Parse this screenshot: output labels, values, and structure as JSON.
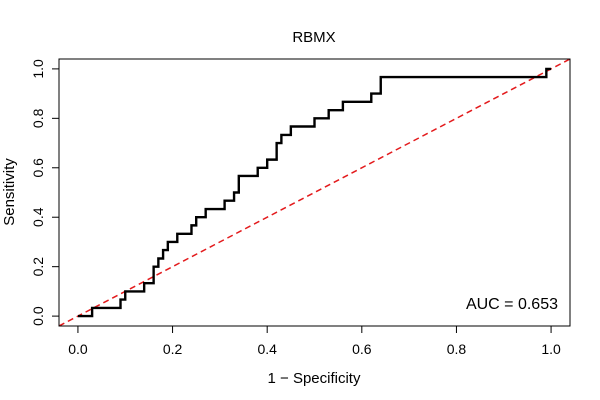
{
  "chart_data": {
    "type": "line",
    "title": "RBMX",
    "xlabel": "1 − Specificity",
    "ylabel": "Sensitivity",
    "xlim": [
      -0.04,
      1.04
    ],
    "ylim": [
      -0.04,
      1.04
    ],
    "x_ticks": [
      0.0,
      0.2,
      0.4,
      0.6,
      0.8,
      1.0
    ],
    "x_tick_labels": [
      "0.0",
      "0.2",
      "0.4",
      "0.6",
      "0.8",
      "1.0"
    ],
    "y_ticks": [
      0.0,
      0.2,
      0.4,
      0.6,
      0.8,
      1.0
    ],
    "y_tick_labels": [
      "0.0",
      "0.2",
      "0.4",
      "0.6",
      "0.8",
      "1.0"
    ],
    "grid": false,
    "annotation": "AUC = 0.653",
    "series": [
      {
        "color": "#000000",
        "style": "solid-step",
        "x": [
          0.0,
          0.03,
          0.03,
          0.09,
          0.09,
          0.1,
          0.1,
          0.14,
          0.14,
          0.16,
          0.16,
          0.17,
          0.17,
          0.18,
          0.18,
          0.19,
          0.19,
          0.21,
          0.21,
          0.24,
          0.24,
          0.25,
          0.25,
          0.27,
          0.27,
          0.31,
          0.31,
          0.33,
          0.33,
          0.34,
          0.34,
          0.38,
          0.38,
          0.4,
          0.4,
          0.42,
          0.42,
          0.43,
          0.43,
          0.45,
          0.45,
          0.5,
          0.5,
          0.53,
          0.53,
          0.56,
          0.56,
          0.62,
          0.62,
          0.64,
          0.64,
          0.99,
          0.99,
          1.0
        ],
        "y": [
          0.0,
          0.0,
          0.033,
          0.033,
          0.067,
          0.067,
          0.1,
          0.1,
          0.133,
          0.133,
          0.2,
          0.2,
          0.233,
          0.233,
          0.267,
          0.267,
          0.3,
          0.3,
          0.333,
          0.333,
          0.367,
          0.367,
          0.4,
          0.4,
          0.433,
          0.433,
          0.467,
          0.467,
          0.5,
          0.5,
          0.567,
          0.567,
          0.6,
          0.6,
          0.633,
          0.633,
          0.7,
          0.7,
          0.733,
          0.733,
          0.767,
          0.767,
          0.8,
          0.8,
          0.833,
          0.833,
          0.867,
          0.867,
          0.9,
          0.9,
          0.967,
          0.967,
          1.0,
          1.0
        ]
      },
      {
        "color": "#e31a1c",
        "style": "dashed",
        "x": [
          -0.04,
          1.04
        ],
        "y": [
          -0.04,
          1.04
        ]
      }
    ]
  }
}
